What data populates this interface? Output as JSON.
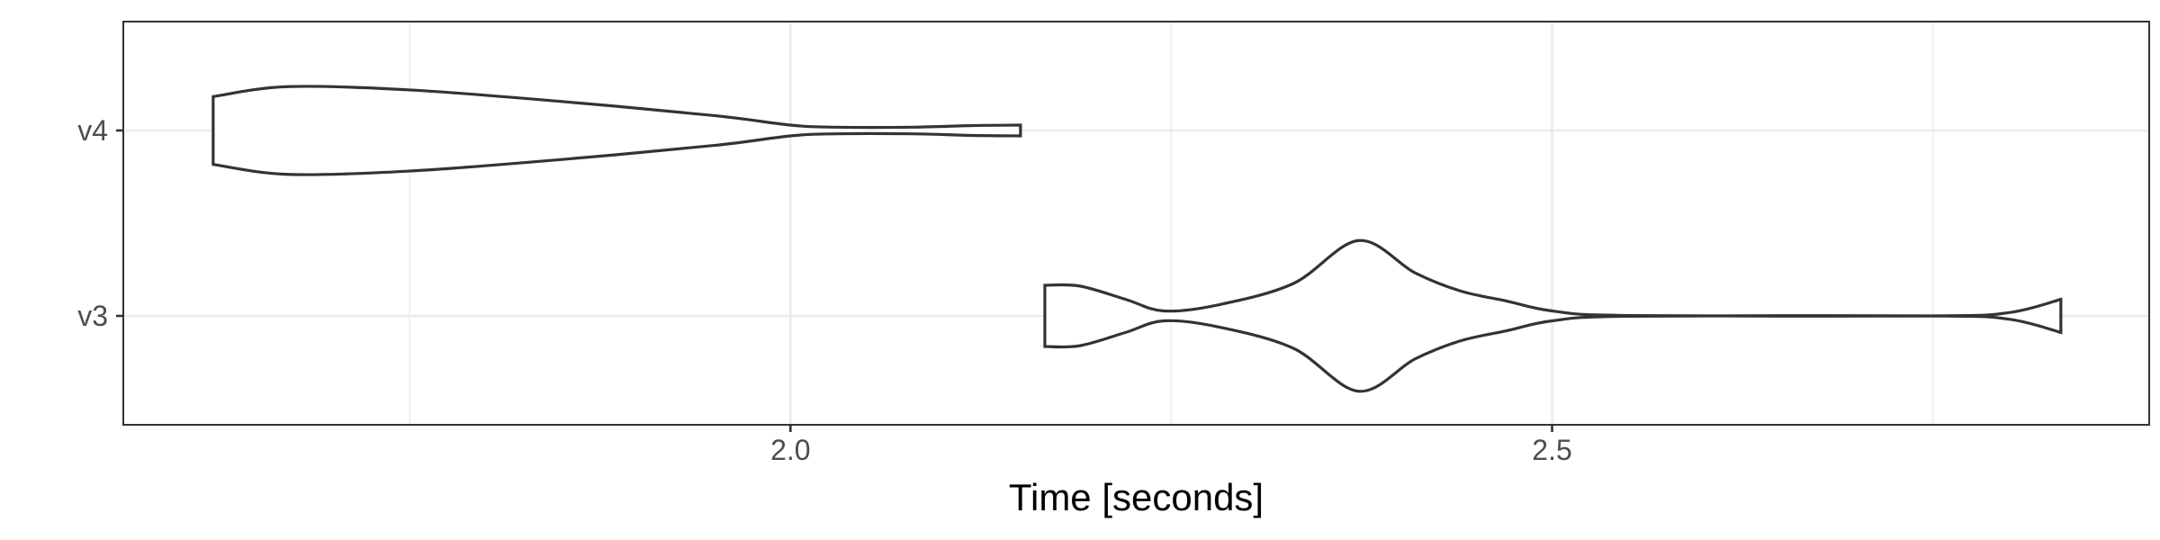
{
  "chart_data": {
    "type": "violin",
    "title": "",
    "xlabel": "Time [seconds]",
    "ylabel": "",
    "orientation": "horizontal",
    "xlim": [
      1.562,
      2.892
    ],
    "x_ticks": [
      2.0,
      2.5
    ],
    "x_tick_labels": [
      "2.0",
      "2.5"
    ],
    "x_minor_ticks": [
      1.75,
      2.25,
      2.75
    ],
    "categories": [
      "v3",
      "v4"
    ],
    "grid": true,
    "theme": "bw",
    "colors": {
      "outline": "#333333",
      "grid": "#ebebeb",
      "panel_border": "#333333",
      "tick_text": "#4d4d4d"
    },
    "violins": [
      {
        "category": "v4",
        "min": 1.621,
        "max": 2.151,
        "profile": [
          [
            1.621,
            0.41
          ],
          [
            1.67,
            0.53
          ],
          [
            1.75,
            0.49
          ],
          [
            1.85,
            0.35
          ],
          [
            1.95,
            0.18
          ],
          [
            2.0,
            0.065
          ],
          [
            2.03,
            0.04
          ],
          [
            2.08,
            0.04
          ],
          [
            2.12,
            0.06
          ],
          [
            2.151,
            0.065
          ]
        ]
      },
      {
        "category": "v3",
        "min": 2.167,
        "max": 2.834,
        "profile": [
          [
            2.167,
            0.37
          ],
          [
            2.19,
            0.36
          ],
          [
            2.22,
            0.2
          ],
          [
            2.245,
            0.06
          ],
          [
            2.28,
            0.13
          ],
          [
            2.33,
            0.39
          ],
          [
            2.373,
            0.91
          ],
          [
            2.41,
            0.52
          ],
          [
            2.44,
            0.3
          ],
          [
            2.47,
            0.18
          ],
          [
            2.5,
            0.06
          ],
          [
            2.55,
            0.005
          ],
          [
            2.75,
            0.0
          ],
          [
            2.8,
            0.04
          ],
          [
            2.834,
            0.2
          ]
        ]
      }
    ]
  }
}
